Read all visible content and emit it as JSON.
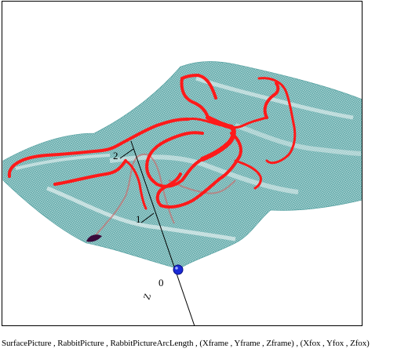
{
  "plot": {
    "axis": {
      "name": "Z",
      "ticks": [
        "0",
        "1",
        "2"
      ]
    },
    "colors": {
      "surface": "#5ba6a6",
      "surface_light": "#d8ecec",
      "rabbit_path": "#ff1a1a",
      "fox_path": "#c87070",
      "fox_marker": "#1b2bd6",
      "rabbit_start": "#3a0a3a",
      "axis": "#000000"
    }
  },
  "caption": {
    "text": "SurfacePicture , RabbitPicture , RabbitPictureArcLength , (Xframe , Yframe , Zframe) , (Xfox , Yfox , Zfox)"
  }
}
